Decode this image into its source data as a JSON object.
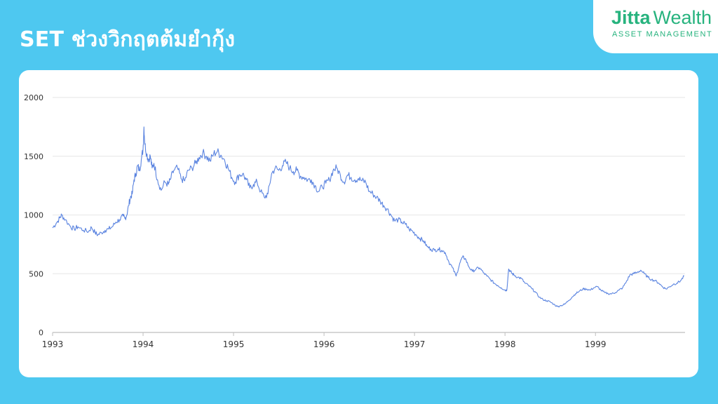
{
  "header": {
    "title": "SET ช่วงวิกฤตต้มยำกุ้ง"
  },
  "logo": {
    "brand": "Jitta",
    "product": "Wealth",
    "subtitle": "ASSET MANAGEMENT",
    "color": "#27b37e"
  },
  "colors": {
    "background": "#4ec8f0",
    "line": "#5b84e0",
    "grid": "#e6e6e6"
  },
  "chart_data": {
    "type": "line",
    "title": "",
    "xlabel": "",
    "ylabel": "",
    "ylim": [
      0,
      2000
    ],
    "yticks": [
      0,
      500,
      1000,
      1500,
      2000
    ],
    "xlim": [
      1993.0,
      1999.99
    ],
    "xticks": [
      1993,
      1994,
      1995,
      1996,
      1997,
      1998,
      1999
    ],
    "grid": "horizontal",
    "legend": "none",
    "series": [
      {
        "x": [
          1993.0,
          1993.04,
          1993.08,
          1993.1,
          1993.14,
          1993.2,
          1993.24,
          1993.28,
          1993.34,
          1993.4,
          1993.43,
          1993.47,
          1993.5,
          1993.54,
          1993.58,
          1993.62,
          1993.66,
          1993.7,
          1993.74,
          1993.78,
          1993.8,
          1993.82,
          1993.84,
          1993.86,
          1993.88,
          1993.9,
          1993.92,
          1993.94,
          1993.96,
          1993.98,
          1994.0,
          1994.01,
          1994.02,
          1994.04,
          1994.06,
          1994.08,
          1994.1,
          1994.12,
          1994.16,
          1994.2,
          1994.24,
          1994.28,
          1994.3,
          1994.34,
          1994.38,
          1994.42,
          1994.46,
          1994.5,
          1994.54,
          1994.58,
          1994.62,
          1994.66,
          1994.7,
          1994.74,
          1994.78,
          1994.82,
          1994.86,
          1994.9,
          1994.94,
          1994.98,
          1995.02,
          1995.06,
          1995.1,
          1995.14,
          1995.18,
          1995.22,
          1995.26,
          1995.3,
          1995.34,
          1995.38,
          1995.42,
          1995.46,
          1995.5,
          1995.54,
          1995.58,
          1995.62,
          1995.66,
          1995.7,
          1995.74,
          1995.78,
          1995.82,
          1995.86,
          1995.9,
          1995.94,
          1995.98,
          1996.02,
          1996.06,
          1996.1,
          1996.14,
          1996.18,
          1996.22,
          1996.26,
          1996.3,
          1996.34,
          1996.38,
          1996.42,
          1996.46,
          1996.5,
          1996.54,
          1996.58,
          1996.62,
          1996.66,
          1996.7,
          1996.74,
          1996.78,
          1996.82,
          1996.86,
          1996.9,
          1996.94,
          1996.98,
          1997.02,
          1997.06,
          1997.1,
          1997.14,
          1997.18,
          1997.22,
          1997.26,
          1997.3,
          1997.34,
          1997.38,
          1997.42,
          1997.46,
          1997.5,
          1997.53,
          1997.56,
          1997.6,
          1997.64,
          1997.68,
          1997.72,
          1997.76,
          1997.8,
          1997.84,
          1997.88,
          1997.92,
          1997.96,
          1998.0,
          1998.02,
          1998.04,
          1998.06,
          1998.08,
          1998.1,
          1998.14,
          1998.18,
          1998.22,
          1998.26,
          1998.3,
          1998.34,
          1998.38,
          1998.42,
          1998.46,
          1998.5,
          1998.54,
          1998.58,
          1998.62,
          1998.66,
          1998.7,
          1998.74,
          1998.78,
          1998.82,
          1998.86,
          1998.9,
          1998.94,
          1998.98,
          1999.02,
          1999.06,
          1999.1,
          1999.14,
          1999.18,
          1999.22,
          1999.26,
          1999.3,
          1999.34,
          1999.38,
          1999.42,
          1999.46,
          1999.5,
          1999.54,
          1999.58,
          1999.62,
          1999.66,
          1999.7,
          1999.74,
          1999.78,
          1999.82,
          1999.86,
          1999.9,
          1999.94,
          1999.98
        ],
        "y": [
          890,
          930,
          975,
          1000,
          960,
          900,
          880,
          900,
          870,
          860,
          895,
          850,
          830,
          850,
          870,
          880,
          900,
          940,
          960,
          990,
          970,
          1000,
          1080,
          1150,
          1180,
          1300,
          1350,
          1420,
          1380,
          1470,
          1560,
          1750,
          1600,
          1520,
          1470,
          1500,
          1400,
          1440,
          1300,
          1210,
          1280,
          1260,
          1300,
          1380,
          1400,
          1310,
          1290,
          1380,
          1400,
          1440,
          1490,
          1530,
          1500,
          1460,
          1520,
          1540,
          1510,
          1470,
          1400,
          1320,
          1280,
          1340,
          1350,
          1300,
          1230,
          1260,
          1280,
          1200,
          1150,
          1180,
          1350,
          1400,
          1380,
          1420,
          1450,
          1400,
          1370,
          1380,
          1330,
          1320,
          1300,
          1300,
          1250,
          1200,
          1240,
          1270,
          1300,
          1380,
          1400,
          1340,
          1280,
          1340,
          1320,
          1300,
          1310,
          1290,
          1280,
          1200,
          1180,
          1150,
          1120,
          1080,
          1050,
          1000,
          950,
          960,
          940,
          920,
          880,
          860,
          830,
          800,
          780,
          730,
          710,
          700,
          710,
          700,
          680,
          600,
          550,
          480,
          590,
          640,
          630,
          560,
          520,
          540,
          550,
          510,
          480,
          450,
          420,
          400,
          380,
          360,
          360,
          540,
          520,
          500,
          490,
          470,
          460,
          420,
          400,
          370,
          340,
          300,
          280,
          270,
          260,
          240,
          220,
          230,
          240,
          270,
          300,
          330,
          350,
          370,
          370,
          360,
          380,
          390,
          360,
          340,
          330,
          330,
          340,
          360,
          380,
          430,
          490,
          500,
          510,
          530,
          500,
          470,
          450,
          440,
          420,
          390,
          370,
          390,
          410,
          420,
          440,
          480
        ]
      }
    ]
  }
}
